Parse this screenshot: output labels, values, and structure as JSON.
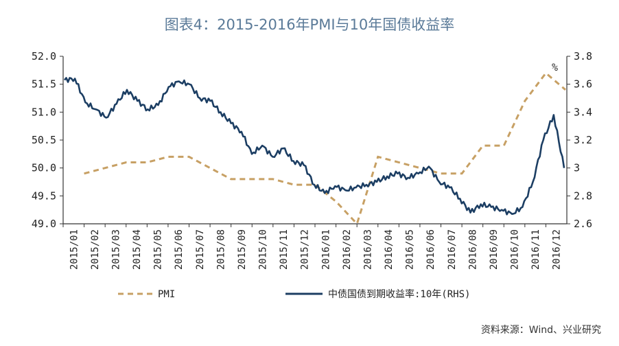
{
  "title": "图表4：2015-2016年PMI与10年国债收益率",
  "source": "资料来源：Wind、兴业研究",
  "colors": {
    "pmi": "#c7a064",
    "yield": "#1c3e63",
    "axis": "#333333",
    "title": "#5a7a98"
  },
  "chart_data": {
    "type": "line",
    "title": "图表4：2015-2016年PMI与10年国债收益率",
    "x_categories": [
      "2015/01",
      "2015/02",
      "2015/03",
      "2015/04",
      "2015/05",
      "2015/06",
      "2015/07",
      "2015/08",
      "2015/09",
      "2015/10",
      "2015/11",
      "2015/12",
      "2016/01",
      "2016/02",
      "2016/03",
      "2016/04",
      "2016/05",
      "2016/06",
      "2016/07",
      "2016/08",
      "2016/09",
      "2016/10",
      "2016/11",
      "2016/12"
    ],
    "left_axis": {
      "min": 49.0,
      "max": 52.0,
      "ticks": [
        "49.0",
        "49.5",
        "50.0",
        "50.5",
        "51.0",
        "51.5",
        "52.0"
      ]
    },
    "right_axis": {
      "min": 2.6,
      "max": 3.8,
      "ticks": [
        "2.6",
        "2.8",
        "3",
        "3.2",
        "3.4",
        "3.6",
        "3.8"
      ],
      "unit_label": "%"
    },
    "legend": {
      "position": "bottom"
    },
    "series": [
      {
        "name": "PMI",
        "axis": "left",
        "style": "dashed",
        "x": [
          "2015/02",
          "2015/03",
          "2015/04",
          "2015/05",
          "2015/06",
          "2015/07",
          "2015/08",
          "2015/09",
          "2015/10",
          "2015/11",
          "2015/12",
          "2016/01",
          "2016/02",
          "2016/03",
          "2016/04",
          "2016/05",
          "2016/06",
          "2016/07",
          "2016/08",
          "2016/09",
          "2016/10",
          "2016/11",
          "2016/12",
          "2016/12 end"
        ],
        "values": [
          49.9,
          50.0,
          50.1,
          50.1,
          50.2,
          50.2,
          50.0,
          49.8,
          49.8,
          49.8,
          49.7,
          49.7,
          49.4,
          49.0,
          50.2,
          50.1,
          50.0,
          49.9,
          49.9,
          50.4,
          50.4,
          51.2,
          51.7,
          51.4
        ]
      },
      {
        "name": "中债国债到期收益率:10年(RHS)",
        "axis": "right",
        "style": "solid",
        "x": [
          "2015/01",
          "2015/01b",
          "2015/02",
          "2015/02b",
          "2015/03",
          "2015/03b",
          "2015/04",
          "2015/04b",
          "2015/05",
          "2015/05b",
          "2015/06",
          "2015/06b",
          "2015/07",
          "2015/07b",
          "2015/08",
          "2015/08b",
          "2015/09",
          "2015/09b",
          "2015/10",
          "2015/10b",
          "2015/11",
          "2015/11b",
          "2015/12",
          "2015/12b",
          "2016/01",
          "2016/01b",
          "2016/02",
          "2016/02b",
          "2016/03",
          "2016/03b",
          "2016/04",
          "2016/04b",
          "2016/05",
          "2016/05b",
          "2016/06",
          "2016/06b",
          "2016/07",
          "2016/07b",
          "2016/08",
          "2016/08b",
          "2016/09",
          "2016/09b",
          "2016/10",
          "2016/10b",
          "2016/11",
          "2016/11b",
          "2016/12",
          "2016/12b",
          "2016/12c"
        ],
        "values": [
          3.63,
          3.64,
          3.47,
          3.42,
          3.36,
          3.46,
          3.56,
          3.48,
          3.42,
          3.45,
          3.58,
          3.62,
          3.6,
          3.5,
          3.48,
          3.4,
          3.32,
          3.26,
          3.1,
          3.16,
          3.08,
          3.14,
          3.05,
          3.02,
          2.88,
          2.82,
          2.87,
          2.84,
          2.86,
          2.88,
          2.9,
          2.94,
          2.96,
          2.93,
          2.96,
          3.01,
          2.9,
          2.86,
          2.78,
          2.68,
          2.74,
          2.72,
          2.7,
          2.67,
          2.72,
          2.9,
          3.2,
          3.38,
          3.0
        ]
      }
    ]
  }
}
